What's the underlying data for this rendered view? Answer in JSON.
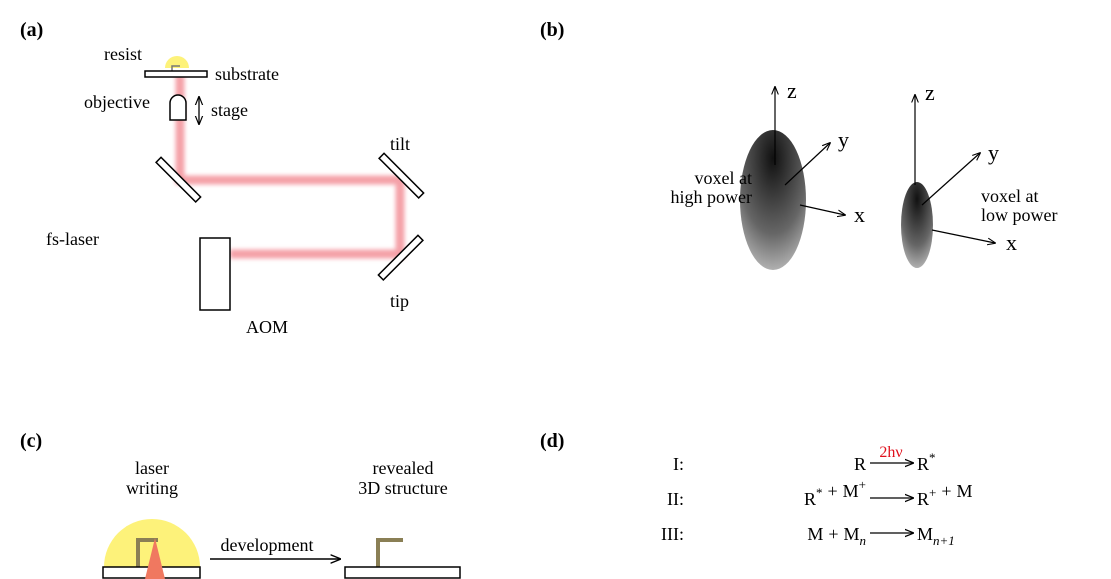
{
  "panels": {
    "a": {
      "label": "(a)",
      "resist": "resist",
      "substrate": "substrate",
      "objective": "objective",
      "stage": "stage",
      "tilt": "tilt",
      "laser": "fs-laser",
      "tip": "tip",
      "aom": "AOM"
    },
    "b": {
      "label": "(b)",
      "high": {
        "z": "z",
        "y": "y",
        "x": "x",
        "caption": [
          "voxel at",
          "high power"
        ]
      },
      "low": {
        "z": "z",
        "y": "y",
        "x": "x",
        "caption": [
          "voxel at",
          "low power"
        ]
      }
    },
    "c": {
      "label": "(c)",
      "writing": [
        "laser",
        "writing"
      ],
      "revealed": [
        "revealed",
        "3D structure"
      ],
      "development": "development"
    },
    "d": {
      "label": "(d)",
      "rows": [
        {
          "step": "I:",
          "left": [
            {
              "base": "R"
            }
          ],
          "arrow_label": "2hν",
          "right": [
            {
              "base": "R",
              "sup": "*"
            }
          ]
        },
        {
          "step": "II:",
          "left": [
            {
              "base": "R",
              "sup": "*"
            },
            {
              "base": "+"
            },
            {
              "base": "M",
              "sup": "+"
            }
          ],
          "right": [
            {
              "base": "R",
              "sup": "+"
            },
            {
              "base": "+"
            },
            {
              "base": "M"
            }
          ]
        },
        {
          "step": "III:",
          "left": [
            {
              "base": "M"
            },
            {
              "base": "+"
            },
            {
              "base": "M",
              "sub": "n"
            }
          ],
          "right": [
            {
              "base": "M",
              "sub": "n+1"
            }
          ]
        }
      ]
    }
  }
}
